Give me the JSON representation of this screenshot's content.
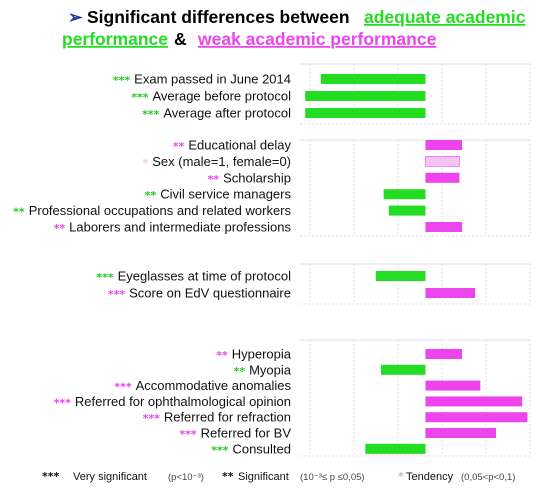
{
  "title": {
    "bullet": "➢",
    "part1": "Significant differences between ",
    "link1": "adequate academic performance",
    "amp": " & ",
    "link2": "weak academic performance",
    "link1_color": "#22dd22",
    "link2_color": "#ee44ee"
  },
  "colors": {
    "adequate": "#22dd22",
    "weak": "#ee44ee",
    "tendency_weak": "#f4c4f4",
    "star_green": "#22cc22",
    "star_magenta": "#ee44ee"
  },
  "legend": {
    "very_significant": {
      "stars": "***",
      "label": "Very significant",
      "range": "(p<10⁻³)"
    },
    "significant": {
      "stars": "**",
      "label": "Significant",
      "range": "(10⁻³≤ p ≤0,05)"
    },
    "tendency": {
      "stars": "*",
      "label": "Tendency",
      "range": "(0,05<p<0,1)"
    }
  },
  "chart_data": {
    "type": "bar",
    "orientation": "horizontal",
    "note": "Values are relative differences; negative = favours adequate performance (green, left of center), positive = favours weak performance (magenta, right of center).",
    "groups": [
      {
        "rows": [
          {
            "label": "Exam passed in June 2014",
            "stars": "***",
            "favours": "adequate",
            "value": -2.0
          },
          {
            "label": "Average before protocol",
            "stars": "***",
            "favours": "adequate",
            "value": -2.3
          },
          {
            "label": "Average after protocol",
            "stars": "***",
            "favours": "adequate",
            "value": -2.3
          }
        ]
      },
      {
        "rows": [
          {
            "label": "Educational delay",
            "stars": "**",
            "favours": "weak",
            "value": 0.7
          },
          {
            "label": "Sex (male=1, female=0)",
            "stars": "*",
            "favours": "weak",
            "tendency": true,
            "value": 0.65
          },
          {
            "label": "Scholarship",
            "stars": "**",
            "favours": "weak",
            "value": 0.65
          },
          {
            "label": "Civil service managers",
            "stars": "**",
            "favours": "adequate",
            "value": -0.8
          },
          {
            "label": "Professional occupations and related workers",
            "stars": "**",
            "favours": "adequate",
            "value": -0.7
          },
          {
            "label": "Laborers and intermediate professions",
            "stars": "**",
            "favours": "weak",
            "value": 0.7
          }
        ]
      },
      {
        "rows": [
          {
            "label": "Eyeglasses at time of protocol",
            "stars": "***",
            "favours": "adequate",
            "value": -0.95
          },
          {
            "label": "Score on EdV questionnaire",
            "stars": "***",
            "favours": "weak",
            "value": 0.95
          }
        ]
      },
      {
        "rows": [
          {
            "label": "Hyperopia",
            "stars": "**",
            "favours": "weak",
            "value": 0.7
          },
          {
            "label": "Myopia",
            "stars": "**",
            "favours": "adequate",
            "value": -0.85
          },
          {
            "label": "Accommodative anomalies",
            "stars": "***",
            "favours": "weak",
            "value": 1.05
          },
          {
            "label": "Referred for ophthalmological opinion",
            "stars": "***",
            "favours": "weak",
            "value": 1.85
          },
          {
            "label": "Referred for refraction",
            "stars": "***",
            "favours": "weak",
            "value": 1.95
          },
          {
            "label": "Referred for BV",
            "stars": "***",
            "favours": "weak",
            "value": 1.35
          },
          {
            "label": "Consulted",
            "stars": "***",
            "favours": "adequate",
            "value": -1.15
          }
        ]
      }
    ],
    "xlim": [
      -2.4,
      2.0
    ],
    "grid": true
  }
}
